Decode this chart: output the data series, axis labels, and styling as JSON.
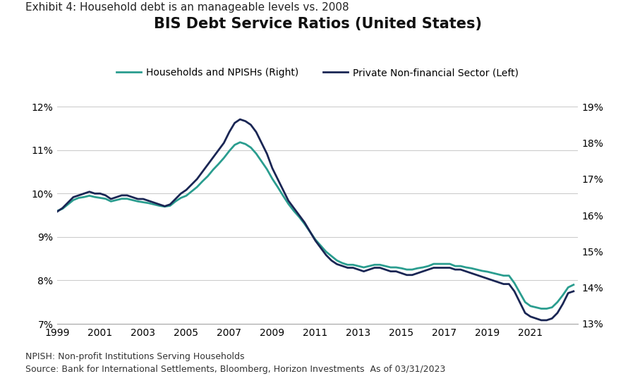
{
  "title": "BIS Debt Service Ratios (United States)",
  "exhibit_label": "Exhibit 4: Household debt is an manageable levels vs. 2008",
  "footnote1": "NPISH: Non-profit Institutions Serving Households",
  "footnote2": "Source: Bank for International Settlements, Bloomberg, Horizon Investments  As of 03/31/2023",
  "legend": [
    "Households and NPISHs (Right)",
    "Private Non-financial Sector (Left)"
  ],
  "line_colors": [
    "#2a9d8f",
    "#1a2654"
  ],
  "left_ylim": [
    13,
    19
  ],
  "right_ylim": [
    7,
    12
  ],
  "left_yticks": [
    13,
    14,
    15,
    16,
    17,
    18,
    19
  ],
  "right_yticks": [
    7,
    8,
    9,
    10,
    11,
    12
  ],
  "xticks": [
    1999,
    2001,
    2003,
    2005,
    2007,
    2009,
    2011,
    2013,
    2015,
    2017,
    2019,
    2021
  ],
  "households_x": [
    1999,
    1999.25,
    1999.5,
    1999.75,
    2000,
    2000.25,
    2000.5,
    2000.75,
    2001,
    2001.25,
    2001.5,
    2001.75,
    2002,
    2002.25,
    2002.5,
    2002.75,
    2003,
    2003.25,
    2003.5,
    2003.75,
    2004,
    2004.25,
    2004.5,
    2004.75,
    2005,
    2005.25,
    2005.5,
    2005.75,
    2006,
    2006.25,
    2006.5,
    2006.75,
    2007,
    2007.25,
    2007.5,
    2007.75,
    2008,
    2008.25,
    2008.5,
    2008.75,
    2009,
    2009.25,
    2009.5,
    2009.75,
    2010,
    2010.25,
    2010.5,
    2010.75,
    2011,
    2011.25,
    2011.5,
    2011.75,
    2012,
    2012.25,
    2012.5,
    2012.75,
    2013,
    2013.25,
    2013.5,
    2013.75,
    2014,
    2014.25,
    2014.5,
    2014.75,
    2015,
    2015.25,
    2015.5,
    2015.75,
    2016,
    2016.25,
    2016.5,
    2016.75,
    2017,
    2017.25,
    2017.5,
    2017.75,
    2018,
    2018.25,
    2018.5,
    2018.75,
    2019,
    2019.25,
    2019.5,
    2019.75,
    2020,
    2020.25,
    2020.5,
    2020.75,
    2021,
    2021.25,
    2021.5,
    2021.75,
    2022,
    2022.25,
    2022.5,
    2022.75,
    2023
  ],
  "households_y": [
    9.6,
    9.65,
    9.75,
    9.85,
    9.9,
    9.92,
    9.95,
    9.92,
    9.9,
    9.88,
    9.82,
    9.85,
    9.88,
    9.88,
    9.85,
    9.82,
    9.8,
    9.78,
    9.75,
    9.72,
    9.7,
    9.72,
    9.82,
    9.9,
    9.95,
    10.05,
    10.15,
    10.28,
    10.4,
    10.55,
    10.68,
    10.82,
    10.98,
    11.12,
    11.18,
    11.14,
    11.06,
    10.92,
    10.74,
    10.56,
    10.34,
    10.15,
    9.95,
    9.76,
    9.6,
    9.46,
    9.3,
    9.12,
    8.94,
    8.8,
    8.66,
    8.56,
    8.46,
    8.4,
    8.36,
    8.36,
    8.33,
    8.3,
    8.33,
    8.36,
    8.36,
    8.33,
    8.3,
    8.3,
    8.28,
    8.25,
    8.25,
    8.28,
    8.3,
    8.33,
    8.38,
    8.38,
    8.38,
    8.38,
    8.33,
    8.33,
    8.3,
    8.28,
    8.25,
    8.22,
    8.2,
    8.17,
    8.14,
    8.11,
    8.11,
    7.94,
    7.72,
    7.5,
    7.41,
    7.38,
    7.35,
    7.35,
    7.38,
    7.5,
    7.66,
    7.84,
    7.9
  ],
  "private_x": [
    1999,
    1999.25,
    1999.5,
    1999.75,
    2000,
    2000.25,
    2000.5,
    2000.75,
    2001,
    2001.25,
    2001.5,
    2001.75,
    2002,
    2002.25,
    2002.5,
    2002.75,
    2003,
    2003.25,
    2003.5,
    2003.75,
    2004,
    2004.25,
    2004.5,
    2004.75,
    2005,
    2005.25,
    2005.5,
    2005.75,
    2006,
    2006.25,
    2006.5,
    2006.75,
    2007,
    2007.25,
    2007.5,
    2007.75,
    2008,
    2008.25,
    2008.5,
    2008.75,
    2009,
    2009.25,
    2009.5,
    2009.75,
    2010,
    2010.25,
    2010.5,
    2010.75,
    2011,
    2011.25,
    2011.5,
    2011.75,
    2012,
    2012.25,
    2012.5,
    2012.75,
    2013,
    2013.25,
    2013.5,
    2013.75,
    2014,
    2014.25,
    2014.5,
    2014.75,
    2015,
    2015.25,
    2015.5,
    2015.75,
    2016,
    2016.25,
    2016.5,
    2016.75,
    2017,
    2017.25,
    2017.5,
    2017.75,
    2018,
    2018.25,
    2018.5,
    2018.75,
    2019,
    2019.25,
    2019.5,
    2019.75,
    2020,
    2020.25,
    2020.5,
    2020.75,
    2021,
    2021.25,
    2021.5,
    2021.75,
    2022,
    2022.25,
    2022.5,
    2022.75,
    2023
  ],
  "private_y": [
    16.1,
    16.2,
    16.35,
    16.5,
    16.55,
    16.6,
    16.65,
    16.6,
    16.6,
    16.55,
    16.45,
    16.5,
    16.55,
    16.55,
    16.5,
    16.45,
    16.45,
    16.4,
    16.35,
    16.3,
    16.25,
    16.3,
    16.45,
    16.6,
    16.7,
    16.85,
    17.0,
    17.2,
    17.4,
    17.6,
    17.8,
    18.0,
    18.3,
    18.55,
    18.65,
    18.6,
    18.5,
    18.3,
    18.0,
    17.7,
    17.3,
    17.0,
    16.7,
    16.4,
    16.2,
    16.0,
    15.8,
    15.55,
    15.3,
    15.1,
    14.9,
    14.75,
    14.65,
    14.6,
    14.55,
    14.55,
    14.5,
    14.45,
    14.5,
    14.55,
    14.55,
    14.5,
    14.45,
    14.45,
    14.4,
    14.35,
    14.35,
    14.4,
    14.45,
    14.5,
    14.55,
    14.55,
    14.55,
    14.55,
    14.5,
    14.5,
    14.45,
    14.4,
    14.35,
    14.3,
    14.25,
    14.2,
    14.15,
    14.1,
    14.1,
    13.9,
    13.6,
    13.3,
    13.2,
    13.15,
    13.1,
    13.1,
    13.15,
    13.3,
    13.55,
    13.85,
    13.9
  ],
  "background_color": "#ffffff",
  "grid_color": "#cccccc",
  "title_fontsize": 15,
  "exhibit_fontsize": 11,
  "footnote_fontsize": 9,
  "tick_fontsize": 10,
  "legend_fontsize": 10
}
